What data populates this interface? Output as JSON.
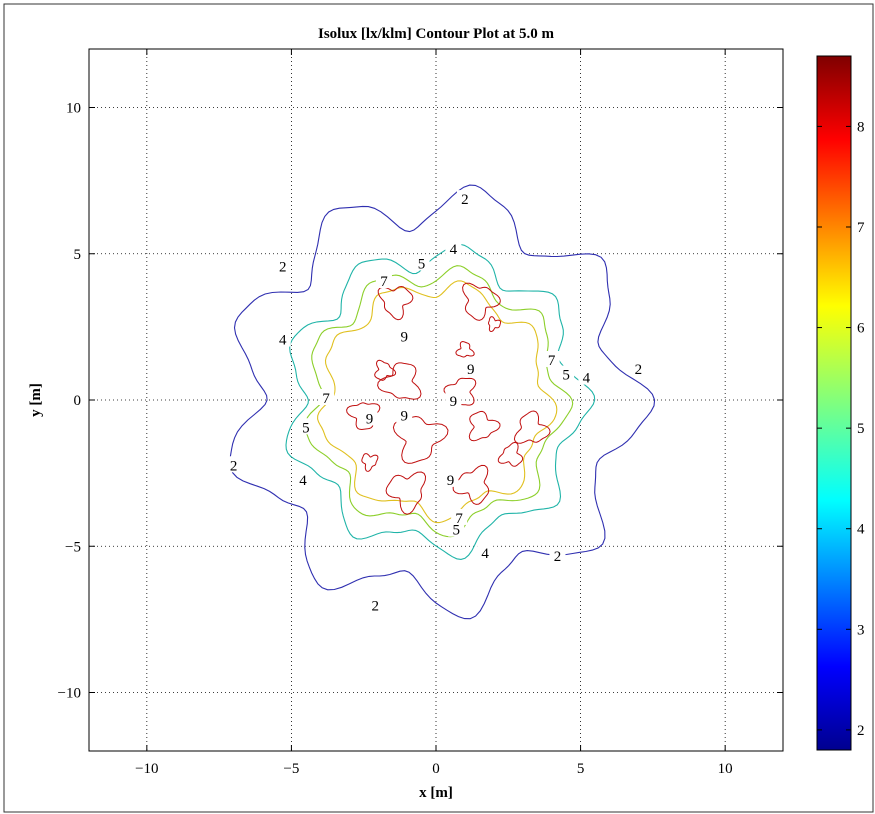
{
  "chart_data": {
    "type": "contour",
    "title": "Isolux [lx/klm] Contour Plot at 5.0 m",
    "xlabel": "x [m]",
    "ylabel": "y [m]",
    "xlim": [
      -12,
      12
    ],
    "ylim": [
      -12,
      12
    ],
    "x_ticks": [
      -10,
      -5,
      0,
      5,
      10
    ],
    "y_ticks": [
      -10,
      -5,
      0,
      5,
      10
    ],
    "x_tick_labels": [
      "−10",
      "−5",
      "0",
      "5",
      "10"
    ],
    "y_tick_labels": [
      "−10",
      "−5",
      "0",
      "5",
      "10"
    ],
    "grid": true,
    "colorbar": {
      "range": [
        1.8,
        8.7
      ],
      "ticks": [
        2,
        3,
        4,
        5,
        6,
        7,
        8
      ],
      "tick_labels": [
        "2",
        "3",
        "4",
        "5",
        "6",
        "7",
        "8"
      ],
      "colormap": "jet"
    },
    "contour_levels": [
      {
        "level": 2,
        "color": "#2f2fb0",
        "radius": 6.7,
        "amplitude": 0.75,
        "lobes": 9,
        "phase": 0.35,
        "labels": [
          {
            "text": "2",
            "x": 1.0,
            "y": 6.8
          },
          {
            "text": "2",
            "x": -5.3,
            "y": 4.5
          },
          {
            "text": "2",
            "x": 7.0,
            "y": 1.0
          },
          {
            "text": "2",
            "x": -7.0,
            "y": -2.3
          },
          {
            "text": "2",
            "x": 4.2,
            "y": -5.4
          },
          {
            "text": "2",
            "x": -2.1,
            "y": -7.1
          }
        ]
      },
      {
        "level": 4,
        "color": "#20b4a8",
        "radius": 4.95,
        "amplitude": 0.45,
        "lobes": 9,
        "phase": 0.2,
        "labels": [
          {
            "text": "4",
            "x": 0.6,
            "y": 5.1
          },
          {
            "text": "4",
            "x": -5.3,
            "y": 2.0
          },
          {
            "text": "4",
            "x": 5.2,
            "y": 0.7
          },
          {
            "text": "4",
            "x": -4.6,
            "y": -2.8
          },
          {
            "text": "4",
            "x": 1.7,
            "y": -5.3
          }
        ]
      },
      {
        "level": 5,
        "color": "#8ccf2a",
        "radius": 4.3,
        "amplitude": 0.35,
        "lobes": 9,
        "phase": 0.6,
        "labels": [
          {
            "text": "5",
            "x": -0.5,
            "y": 4.6
          },
          {
            "text": "5",
            "x": 4.5,
            "y": 0.8
          },
          {
            "text": "5",
            "x": -4.5,
            "y": -1.0
          },
          {
            "text": "5",
            "x": 0.7,
            "y": -4.5
          }
        ]
      },
      {
        "level": 7,
        "color": "#e0c020",
        "radius": 3.85,
        "amplitude": 0.3,
        "lobes": 9,
        "phase": 1.0,
        "labels": [
          {
            "text": "7",
            "x": -1.8,
            "y": 4.0
          },
          {
            "text": "7",
            "x": 4.0,
            "y": 1.3
          },
          {
            "text": "7",
            "x": -3.8,
            "y": 0.0
          },
          {
            "text": "7",
            "x": 0.8,
            "y": -4.1
          }
        ]
      }
    ],
    "peak_regions": [
      {
        "level": 9,
        "cx": -1.4,
        "cy": 3.4,
        "r": 0.5
      },
      {
        "level": 9,
        "cx": 1.5,
        "cy": 3.4,
        "r": 0.55
      },
      {
        "level": 9,
        "cx": -1.8,
        "cy": 1.0,
        "r": 0.3
      },
      {
        "level": 9,
        "cx": 1.0,
        "cy": 1.7,
        "r": 0.25
      },
      {
        "level": 9,
        "cx": -1.2,
        "cy": 0.6,
        "r": 0.6
      },
      {
        "level": 9,
        "cx": 0.9,
        "cy": 0.3,
        "r": 0.45
      },
      {
        "level": 9,
        "cx": -2.5,
        "cy": -0.5,
        "r": 0.45
      },
      {
        "level": 9,
        "cx": -0.6,
        "cy": -1.3,
        "r": 0.75
      },
      {
        "level": 9,
        "cx": 1.6,
        "cy": -0.9,
        "r": 0.45
      },
      {
        "level": 9,
        "cx": 3.3,
        "cy": -1.0,
        "r": 0.5
      },
      {
        "level": 9,
        "cx": 2.6,
        "cy": -1.9,
        "r": 0.35
      },
      {
        "level": 9,
        "cx": 1.3,
        "cy": -2.9,
        "r": 0.55
      },
      {
        "level": 9,
        "cx": -1.0,
        "cy": -3.1,
        "r": 0.6
      },
      {
        "level": 9,
        "cx": -2.3,
        "cy": -2.1,
        "r": 0.25
      },
      {
        "level": 9,
        "cx": 2.0,
        "cy": 2.6,
        "r": 0.2
      }
    ],
    "peak_labels": [
      {
        "text": "9",
        "x": -1.1,
        "y": 2.1
      },
      {
        "text": "9",
        "x": 1.2,
        "y": 1.0
      },
      {
        "text": "9",
        "x": 0.6,
        "y": -0.1
      },
      {
        "text": "9",
        "x": -2.3,
        "y": -0.7
      },
      {
        "text": "9",
        "x": -1.1,
        "y": -0.6
      },
      {
        "text": "9",
        "x": 0.5,
        "y": -2.8
      }
    ]
  }
}
